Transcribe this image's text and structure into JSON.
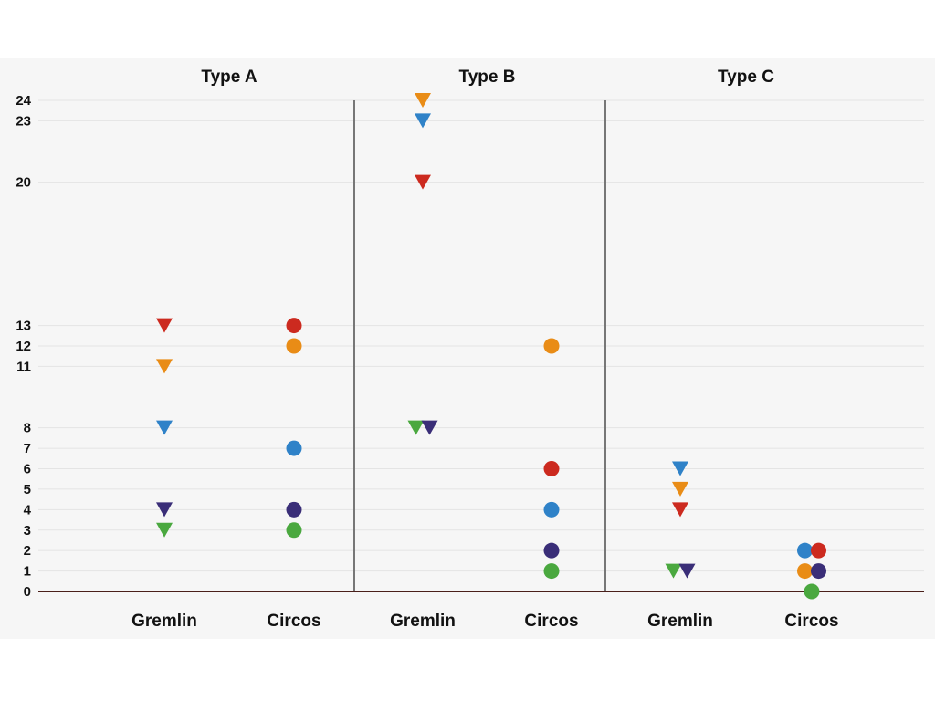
{
  "chart_data": {
    "type": "scatter",
    "panels": [
      "Type A",
      "Type B",
      "Type C"
    ],
    "categories": [
      "Gremlin",
      "Circos"
    ],
    "y_ticks": [
      0,
      1,
      2,
      3,
      4,
      5,
      6,
      7,
      8,
      11,
      12,
      13,
      20,
      23,
      24
    ],
    "ylim": [
      0,
      24
    ],
    "grid": true,
    "series_colors": {
      "red": "#cc2a1f",
      "orange": "#e98c16",
      "blue": "#2f82c8",
      "navy": "#3a2e78",
      "green": "#4aa83f"
    },
    "points": [
      {
        "panel": "Type A",
        "category": "Gremlin",
        "series": "red",
        "marker": "triangle",
        "value": 13
      },
      {
        "panel": "Type A",
        "category": "Gremlin",
        "series": "orange",
        "marker": "triangle",
        "value": 11
      },
      {
        "panel": "Type A",
        "category": "Gremlin",
        "series": "blue",
        "marker": "triangle",
        "value": 8
      },
      {
        "panel": "Type A",
        "category": "Gremlin",
        "series": "navy",
        "marker": "triangle",
        "value": 4
      },
      {
        "panel": "Type A",
        "category": "Gremlin",
        "series": "green",
        "marker": "triangle",
        "value": 3
      },
      {
        "panel": "Type A",
        "category": "Circos",
        "series": "red",
        "marker": "circle",
        "value": 13
      },
      {
        "panel": "Type A",
        "category": "Circos",
        "series": "orange",
        "marker": "circle",
        "value": 12
      },
      {
        "panel": "Type A",
        "category": "Circos",
        "series": "blue",
        "marker": "circle",
        "value": 7
      },
      {
        "panel": "Type A",
        "category": "Circos",
        "series": "navy",
        "marker": "circle",
        "value": 4
      },
      {
        "panel": "Type A",
        "category": "Circos",
        "series": "green",
        "marker": "circle",
        "value": 3
      },
      {
        "panel": "Type B",
        "category": "Gremlin",
        "series": "orange",
        "marker": "triangle",
        "value": 24
      },
      {
        "panel": "Type B",
        "category": "Gremlin",
        "series": "blue",
        "marker": "triangle",
        "value": 23
      },
      {
        "panel": "Type B",
        "category": "Gremlin",
        "series": "red",
        "marker": "triangle",
        "value": 20
      },
      {
        "panel": "Type B",
        "category": "Gremlin",
        "series": "green",
        "marker": "triangle",
        "value": 8
      },
      {
        "panel": "Type B",
        "category": "Gremlin",
        "series": "navy",
        "marker": "triangle",
        "value": 8
      },
      {
        "panel": "Type B",
        "category": "Circos",
        "series": "orange",
        "marker": "circle",
        "value": 12
      },
      {
        "panel": "Type B",
        "category": "Circos",
        "series": "red",
        "marker": "circle",
        "value": 6
      },
      {
        "panel": "Type B",
        "category": "Circos",
        "series": "blue",
        "marker": "circle",
        "value": 4
      },
      {
        "panel": "Type B",
        "category": "Circos",
        "series": "navy",
        "marker": "circle",
        "value": 2
      },
      {
        "panel": "Type B",
        "category": "Circos",
        "series": "green",
        "marker": "circle",
        "value": 1
      },
      {
        "panel": "Type C",
        "category": "Gremlin",
        "series": "blue",
        "marker": "triangle",
        "value": 6
      },
      {
        "panel": "Type C",
        "category": "Gremlin",
        "series": "orange",
        "marker": "triangle",
        "value": 5
      },
      {
        "panel": "Type C",
        "category": "Gremlin",
        "series": "red",
        "marker": "triangle",
        "value": 4
      },
      {
        "panel": "Type C",
        "category": "Gremlin",
        "series": "green",
        "marker": "triangle",
        "value": 1
      },
      {
        "panel": "Type C",
        "category": "Gremlin",
        "series": "navy",
        "marker": "triangle",
        "value": 1
      },
      {
        "panel": "Type C",
        "category": "Circos",
        "series": "blue",
        "marker": "circle",
        "value": 2
      },
      {
        "panel": "Type C",
        "category": "Circos",
        "series": "red",
        "marker": "circle",
        "value": 2
      },
      {
        "panel": "Type C",
        "category": "Circos",
        "series": "orange",
        "marker": "circle",
        "value": 1
      },
      {
        "panel": "Type C",
        "category": "Circos",
        "series": "navy",
        "marker": "circle",
        "value": 1
      },
      {
        "panel": "Type C",
        "category": "Circos",
        "series": "green",
        "marker": "circle",
        "value": 0
      }
    ]
  }
}
